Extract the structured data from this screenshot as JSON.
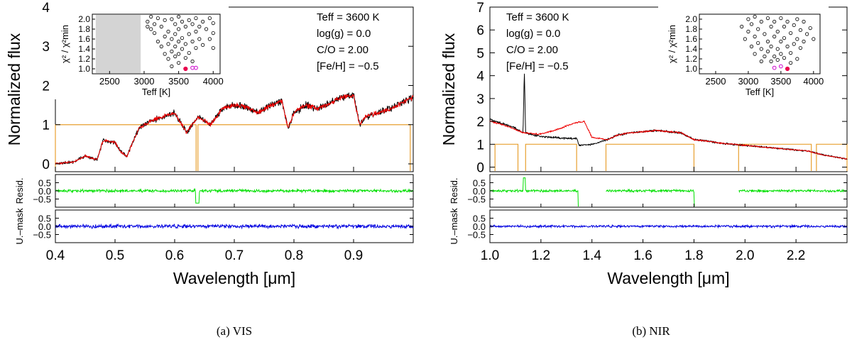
{
  "figure": {
    "panels": [
      {
        "id": "vis",
        "caption": "(a) VIS",
        "xlabel": "Wavelength [μm]",
        "xlim": [
          0.4,
          1.0
        ],
        "xticks": [
          0.4,
          0.5,
          0.6,
          0.7,
          0.8,
          0.9
        ],
        "xtick_labels": [
          "0.4",
          "0.5",
          "0.6",
          "0.7",
          "0.8",
          "0.9"
        ],
        "main": {
          "ylabel": "Normalized flux",
          "ylim": [
            -0.2,
            4.0
          ],
          "yticks": [
            0,
            1,
            2,
            3,
            4
          ],
          "ytick_labels": [
            "0",
            "1",
            "2",
            "3",
            "4"
          ],
          "annotations": [
            "Teff = 3600 K",
            "log(g) = 0.0",
            "C/O = 2.00",
            "[Fe/H] = −0.5"
          ],
          "mask_segments": [
            [
              0.4,
              0.636
            ],
            [
              0.639,
              0.995
            ]
          ]
        },
        "inset": {
          "xlabel": "Teff [K]",
          "ylabel": "χ² / χ²min",
          "xlim": [
            2250,
            4100
          ],
          "ylim": [
            0.9,
            2.1
          ],
          "xticks": [
            2500,
            3000,
            3500,
            4000
          ],
          "xtick_labels": [
            "2500",
            "3000",
            "3500",
            "4000"
          ],
          "yticks": [
            1.0,
            1.2,
            1.4,
            1.6,
            1.8,
            2.0
          ],
          "ytick_labels": [
            "1.0",
            "1.2",
            "1.4",
            "1.6",
            "1.8",
            "2.0"
          ],
          "gray_region": [
            2300,
            2950
          ],
          "open_points": [
            [
              3050,
              1.95
            ],
            [
              3050,
              1.85
            ],
            [
              3100,
              2.05
            ],
            [
              3100,
              1.8
            ],
            [
              3150,
              1.9
            ],
            [
              3150,
              1.72
            ],
            [
              3200,
              2.02
            ],
            [
              3200,
              1.55
            ],
            [
              3250,
              1.85
            ],
            [
              3250,
              1.45
            ],
            [
              3300,
              1.98
            ],
            [
              3300,
              1.65
            ],
            [
              3300,
              1.3
            ],
            [
              3350,
              1.75
            ],
            [
              3350,
              1.5
            ],
            [
              3350,
              1.2
            ],
            [
              3400,
              2.0
            ],
            [
              3400,
              1.6
            ],
            [
              3400,
              1.35
            ],
            [
              3400,
              1.05
            ],
            [
              3450,
              1.9
            ],
            [
              3450,
              1.7
            ],
            [
              3450,
              1.45
            ],
            [
              3450,
              1.25
            ],
            [
              3500,
              2.05
            ],
            [
              3500,
              1.8
            ],
            [
              3500,
              1.55
            ],
            [
              3500,
              1.3
            ],
            [
              3500,
              1.12
            ],
            [
              3550,
              1.95
            ],
            [
              3550,
              1.62
            ],
            [
              3550,
              1.4
            ],
            [
              3600,
              1.85
            ],
            [
              3600,
              1.5
            ],
            [
              3600,
              1.22
            ],
            [
              3650,
              1.98
            ],
            [
              3650,
              1.7
            ],
            [
              3650,
              1.32
            ],
            [
              3700,
              1.9
            ],
            [
              3700,
              1.55
            ],
            [
              3700,
              1.15
            ],
            [
              3750,
              2.02
            ],
            [
              3750,
              1.75
            ],
            [
              3750,
              1.42
            ],
            [
              3800,
              1.85
            ],
            [
              3800,
              1.6
            ],
            [
              3850,
              1.95
            ],
            [
              3850,
              1.48
            ],
            [
              3900,
              1.8
            ],
            [
              3950,
              2.02
            ],
            [
              3950,
              1.6
            ],
            [
              4000,
              1.92
            ],
            [
              4000,
              1.72
            ],
            [
              4000,
              1.42
            ]
          ],
          "best_point": [
            3600,
            1.0
          ],
          "magenta_points": [
            [
              3700,
              1.02
            ],
            [
              3750,
              1.02
            ]
          ],
          "best_color": "#e8004c",
          "magenta_color": "#cc00cc"
        },
        "resid_upper": {
          "ylabel": "Resid.",
          "ylim": [
            -1.0,
            1.0
          ],
          "yticks": [
            -0.5,
            0.0,
            0.5
          ],
          "ytick_labels": [
            "−0.5",
            "0.0",
            "0.5"
          ],
          "color": "#00e000",
          "gaps": []
        },
        "resid_lower": {
          "ylabel": "U.–mask",
          "ylim": [
            -1.0,
            1.0
          ],
          "yticks": [
            -0.5,
            0.0,
            0.5
          ],
          "ytick_labels": [
            "−0.5",
            "0.0",
            "0.5"
          ],
          "color": "#0000e0"
        }
      },
      {
        "id": "nir",
        "caption": "(b) NIR",
        "xlabel": "Wavelength [μm]",
        "xlim": [
          1.0,
          2.4
        ],
        "xticks": [
          1.0,
          1.2,
          1.4,
          1.6,
          1.8,
          2.0,
          2.2
        ],
        "xtick_labels": [
          "1.0",
          "1.2",
          "1.4",
          "1.6",
          "1.8",
          "2.0",
          "2.2"
        ],
        "main": {
          "ylabel": "Normalized flux",
          "ylim": [
            -0.2,
            7.0
          ],
          "yticks": [
            0,
            1,
            2,
            3,
            4,
            5,
            6,
            7
          ],
          "ytick_labels": [
            "0",
            "1",
            "2",
            "3",
            "4",
            "5",
            "6",
            "7"
          ],
          "annotations": [
            "Teff = 3600 K",
            "log(g) = 0.0",
            "C/O = 2.00",
            "[Fe/H] = −0.5"
          ],
          "mask_segments": [
            [
              1.02,
              1.11
            ],
            [
              1.14,
              1.34
            ],
            [
              1.455,
              1.8
            ],
            [
              1.975,
              2.26
            ],
            [
              2.28,
              2.4
            ]
          ]
        },
        "inset": {
          "xlabel": "Teff [K]",
          "ylabel": "χ² / χ²min",
          "xlim": [
            2250,
            4100
          ],
          "ylim": [
            0.9,
            2.1
          ],
          "xticks": [
            2500,
            3000,
            3500,
            4000
          ],
          "xtick_labels": [
            "2500",
            "3000",
            "3500",
            "4000"
          ],
          "yticks": [
            1.0,
            1.2,
            1.4,
            1.6,
            1.8,
            2.0
          ],
          "ytick_labels": [
            "1.0",
            "1.2",
            "1.4",
            "1.6",
            "1.8",
            "2.0"
          ],
          "gray_region": null,
          "open_points": [
            [
              2900,
              1.85
            ],
            [
              2950,
              1.6
            ],
            [
              3000,
              2.0
            ],
            [
              3000,
              1.75
            ],
            [
              3050,
              1.9
            ],
            [
              3050,
              1.45
            ],
            [
              3100,
              2.05
            ],
            [
              3100,
              1.65
            ],
            [
              3100,
              1.3
            ],
            [
              3150,
              1.8
            ],
            [
              3150,
              1.52
            ],
            [
              3200,
              1.95
            ],
            [
              3200,
              1.4
            ],
            [
              3200,
              1.15
            ],
            [
              3250,
              1.7
            ],
            [
              3250,
              1.25
            ],
            [
              3300,
              2.02
            ],
            [
              3300,
              1.55
            ],
            [
              3300,
              1.35
            ],
            [
              3350,
              1.85
            ],
            [
              3350,
              1.45
            ],
            [
              3350,
              1.15
            ],
            [
              3400,
              1.95
            ],
            [
              3400,
              1.65
            ],
            [
              3400,
              1.25
            ],
            [
              3450,
              1.75
            ],
            [
              3450,
              1.4
            ],
            [
              3450,
              1.18
            ],
            [
              3500,
              2.02
            ],
            [
              3500,
              1.55
            ],
            [
              3500,
              1.3
            ],
            [
              3550,
              1.85
            ],
            [
              3550,
              1.62
            ],
            [
              3550,
              1.22
            ],
            [
              3600,
              1.95
            ],
            [
              3600,
              1.45
            ],
            [
              3650,
              1.72
            ],
            [
              3650,
              1.32
            ],
            [
              3650,
              1.12
            ],
            [
              3700,
              1.88
            ],
            [
              3700,
              1.5
            ],
            [
              3750,
              2.0
            ],
            [
              3750,
              1.6
            ],
            [
              3750,
              1.2
            ],
            [
              3800,
              1.78
            ],
            [
              3800,
              1.42
            ],
            [
              3850,
              1.95
            ],
            [
              3850,
              1.55
            ],
            [
              3900,
              1.7
            ],
            [
              3950,
              1.82
            ],
            [
              4000,
              1.6
            ]
          ],
          "best_point": [
            3600,
            1.0
          ],
          "magenta_points": [
            [
              3400,
              1.02
            ],
            [
              3500,
              1.05
            ]
          ],
          "best_color": "#e8004c",
          "magenta_color": "#cc00cc"
        },
        "resid_upper": {
          "ylabel": "Resid.",
          "ylim": [
            -1.0,
            1.0
          ],
          "yticks": [
            -0.5,
            0.0,
            0.5
          ],
          "ytick_labels": [
            "−0.5",
            "0.0",
            "0.5"
          ],
          "color": "#00e000",
          "gaps": [
            [
              1.345,
              1.455
            ],
            [
              1.8,
              1.975
            ]
          ]
        },
        "resid_lower": {
          "ylabel": "U.–mask",
          "ylim": [
            -1.0,
            1.0
          ],
          "yticks": [
            -0.5,
            0.0,
            0.5
          ],
          "ytick_labels": [
            "−0.5",
            "0.0",
            "0.5"
          ],
          "color": "#0000e0"
        }
      }
    ],
    "colors": {
      "observed": "#000000",
      "model": "#ee0000",
      "mask": "#e8a030"
    }
  },
  "chart_data": [
    {
      "type": "line",
      "title": "(a) VIS",
      "xlabel": "Wavelength [μm]",
      "ylabel": "Normalized flux",
      "xlim": [
        0.4,
        1.0
      ],
      "ylim": [
        -0.2,
        4.0
      ],
      "series": [
        {
          "name": "observed",
          "x": [
            0.4,
            0.43,
            0.45,
            0.46,
            0.47,
            0.48,
            0.5,
            0.51,
            0.52,
            0.54,
            0.56,
            0.58,
            0.6,
            0.62,
            0.64,
            0.66,
            0.68,
            0.7,
            0.72,
            0.74,
            0.76,
            0.78,
            0.79,
            0.8,
            0.82,
            0.84,
            0.86,
            0.88,
            0.9,
            0.91,
            0.92,
            0.94,
            0.96,
            0.98,
            1.0
          ],
          "y": [
            0.0,
            0.05,
            0.2,
            0.15,
            0.1,
            0.6,
            0.55,
            0.3,
            0.2,
            0.9,
            1.1,
            1.2,
            1.3,
            0.8,
            1.2,
            1.0,
            1.4,
            1.5,
            1.45,
            1.3,
            1.5,
            1.6,
            0.9,
            1.3,
            1.5,
            1.4,
            1.55,
            1.7,
            1.75,
            1.0,
            1.2,
            1.3,
            1.4,
            1.55,
            1.7
          ]
        },
        {
          "name": "model",
          "x": [
            0.4,
            0.43,
            0.45,
            0.46,
            0.47,
            0.48,
            0.5,
            0.51,
            0.52,
            0.54,
            0.56,
            0.58,
            0.6,
            0.62,
            0.64,
            0.66,
            0.68,
            0.7,
            0.72,
            0.74,
            0.76,
            0.78,
            0.79,
            0.8,
            0.82,
            0.84,
            0.86,
            0.88,
            0.9,
            0.91,
            0.92,
            0.94,
            0.96,
            0.98,
            1.0
          ],
          "y": [
            0.0,
            0.05,
            0.2,
            0.15,
            0.1,
            0.6,
            0.55,
            0.3,
            0.2,
            0.9,
            1.1,
            1.2,
            1.3,
            0.8,
            1.2,
            1.0,
            1.4,
            1.5,
            1.45,
            1.3,
            1.5,
            1.6,
            0.9,
            1.3,
            1.5,
            1.4,
            1.55,
            1.7,
            1.75,
            1.0,
            1.2,
            1.3,
            1.4,
            1.55,
            1.7
          ]
        }
      ],
      "annotations": [
        "Teff = 3600 K",
        "log(g) = 0.0",
        "C/O = 2.00",
        "[Fe/H] = −0.5"
      ]
    },
    {
      "type": "line",
      "title": "(b) NIR",
      "xlabel": "Wavelength [μm]",
      "ylabel": "Normalized flux",
      "xlim": [
        1.0,
        2.4
      ],
      "ylim": [
        -0.2,
        7.0
      ],
      "series": [
        {
          "name": "observed",
          "x": [
            1.0,
            1.02,
            1.05,
            1.08,
            1.1,
            1.13,
            1.135,
            1.14,
            1.17,
            1.2,
            1.25,
            1.3,
            1.34,
            1.35,
            1.4,
            1.46,
            1.5,
            1.55,
            1.6,
            1.65,
            1.7,
            1.75,
            1.8,
            1.85,
            1.9,
            1.95,
            2.0,
            2.05,
            2.1,
            2.15,
            2.2,
            2.25,
            2.3,
            2.35,
            2.4
          ],
          "y": [
            2.1,
            2.0,
            1.9,
            1.8,
            1.7,
            1.5,
            4.3,
            1.5,
            1.4,
            1.35,
            1.3,
            1.25,
            1.25,
            0.95,
            1.0,
            1.2,
            1.4,
            1.5,
            1.55,
            1.6,
            1.55,
            1.5,
            1.2,
            1.15,
            1.05,
            1.0,
            0.95,
            0.9,
            0.85,
            0.8,
            0.75,
            0.7,
            0.55,
            0.45,
            0.35
          ]
        },
        {
          "name": "model",
          "x": [
            1.0,
            1.02,
            1.05,
            1.08,
            1.1,
            1.13,
            1.14,
            1.17,
            1.2,
            1.25,
            1.3,
            1.34,
            1.37,
            1.4,
            1.46,
            1.5,
            1.55,
            1.6,
            1.65,
            1.7,
            1.75,
            1.8,
            1.85,
            1.9,
            1.95,
            2.0,
            2.05,
            2.1,
            2.15,
            2.2,
            2.25,
            2.3,
            2.35,
            2.4
          ],
          "y": [
            2.0,
            1.95,
            1.85,
            1.75,
            1.65,
            1.5,
            1.5,
            1.45,
            1.45,
            1.6,
            1.8,
            1.95,
            2.0,
            1.3,
            1.2,
            1.4,
            1.5,
            1.55,
            1.6,
            1.55,
            1.5,
            1.2,
            1.15,
            1.05,
            1.0,
            0.95,
            0.9,
            0.85,
            0.8,
            0.75,
            0.7,
            0.55,
            0.45,
            0.35
          ]
        }
      ],
      "annotations": [
        "Teff = 3600 K",
        "log(g) = 0.0",
        "C/O = 2.00",
        "[Fe/H] = −0.5"
      ]
    }
  ]
}
